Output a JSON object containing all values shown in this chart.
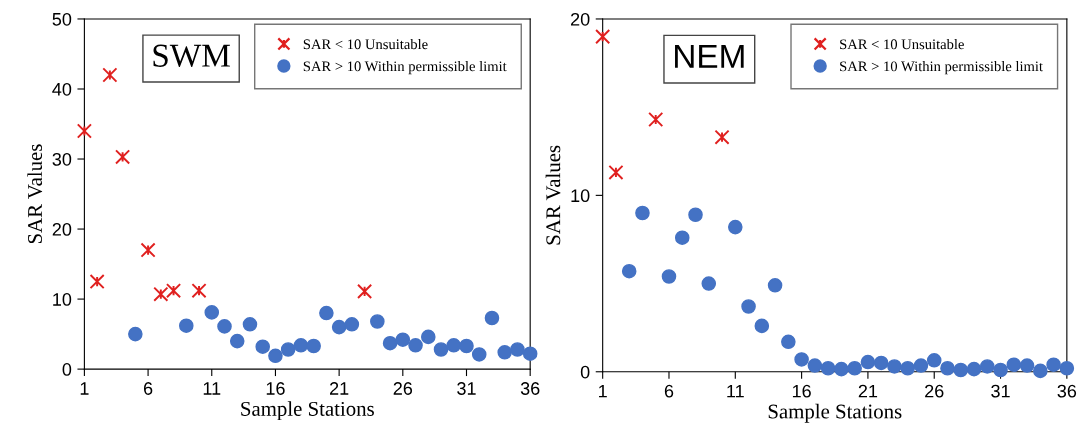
{
  "chart_data": [
    {
      "type": "scatter",
      "xlabel": "Sample Stations",
      "ylabel": "SAR Values",
      "annotations": [
        "SWM"
      ],
      "xlim": [
        1,
        36
      ],
      "xticks": [
        1,
        6,
        11,
        16,
        21,
        26,
        31,
        36
      ],
      "ylim": [
        0,
        50
      ],
      "yticks": [
        0,
        10,
        20,
        30,
        40,
        50
      ],
      "grid": false,
      "legend": "top right",
      "series": [
        {
          "name": "SAR < 10 Unsuitable",
          "color": "#e0201f",
          "marker": "cross",
          "x": [
            1,
            2,
            3,
            4,
            6,
            7,
            8,
            10,
            23
          ],
          "values": [
            34,
            12.5,
            42,
            30.3,
            17,
            10.7,
            11.2,
            11.2,
            11.1
          ]
        },
        {
          "name": "SAR > 10 Within permissible limit",
          "color": "#4472c4",
          "marker": "circle",
          "x": [
            5,
            9,
            11,
            12,
            13,
            14,
            15,
            16,
            17,
            18,
            19,
            20,
            21,
            22,
            24,
            25,
            26,
            27,
            28,
            29,
            30,
            31,
            32,
            33,
            34,
            35,
            36
          ],
          "values": [
            5.0,
            6.2,
            8.1,
            6.1,
            4.0,
            6.4,
            3.2,
            1.9,
            2.8,
            3.4,
            3.3,
            8.0,
            6.0,
            6.4,
            6.8,
            3.7,
            4.2,
            3.4,
            4.6,
            2.8,
            3.4,
            3.3,
            2.1,
            7.3,
            2.4,
            2.8,
            2.2
          ]
        }
      ]
    },
    {
      "type": "scatter",
      "xlabel": "Sample Stations",
      "ylabel": "SAR Values",
      "annotations": [
        "NEM"
      ],
      "xlim": [
        1,
        36
      ],
      "xticks": [
        1,
        6,
        11,
        16,
        21,
        26,
        31,
        36
      ],
      "ylim": [
        0,
        20
      ],
      "yticks": [
        0,
        10,
        20
      ],
      "grid": false,
      "legend": "top right",
      "series": [
        {
          "name": "SAR < 10 Unsuitable",
          "color": "#e0201f",
          "marker": "cross",
          "x": [
            1,
            2,
            5,
            10
          ],
          "values": [
            19.0,
            11.3,
            14.3,
            13.3
          ]
        },
        {
          "name": "SAR > 10 Within permissible limit",
          "color": "#4472c4",
          "marker": "circle",
          "x": [
            3,
            4,
            6,
            7,
            8,
            9,
            11,
            12,
            13,
            14,
            15,
            16,
            17,
            18,
            19,
            20,
            21,
            22,
            23,
            24,
            25,
            26,
            27,
            28,
            29,
            30,
            31,
            32,
            33,
            34,
            35,
            36
          ],
          "values": [
            5.7,
            9.0,
            5.4,
            7.6,
            8.9,
            5.0,
            8.2,
            3.7,
            2.6,
            4.9,
            1.7,
            0.7,
            0.35,
            0.2,
            0.15,
            0.2,
            0.55,
            0.5,
            0.3,
            0.2,
            0.35,
            0.65,
            0.2,
            0.1,
            0.15,
            0.3,
            0.1,
            0.4,
            0.35,
            0.05,
            0.4,
            0.2
          ]
        }
      ]
    }
  ]
}
